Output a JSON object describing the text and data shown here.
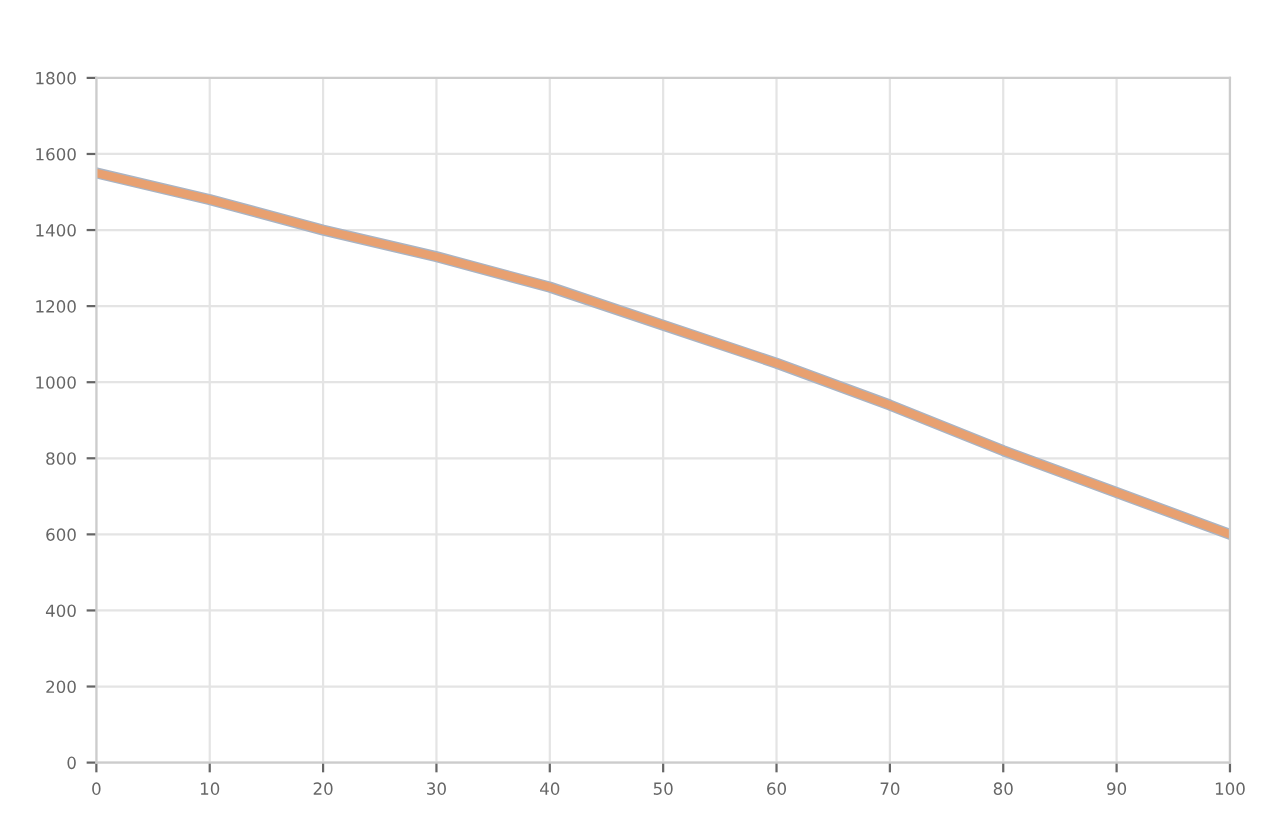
{
  "chart_data": {
    "type": "line",
    "x": [
      0,
      10,
      20,
      30,
      40,
      50,
      60,
      70,
      80,
      90,
      100
    ],
    "series": [
      {
        "color": "#a9b4c4",
        "values": [
          1550,
          1480,
          1400,
          1330,
          1250,
          1150,
          1050,
          940,
          820,
          710,
          600
        ]
      },
      {
        "color": "#e8a070",
        "values": [
          1550,
          1480,
          1400,
          1330,
          1250,
          1150,
          1050,
          940,
          820,
          710,
          600
        ]
      }
    ],
    "xlim": [
      0,
      100
    ],
    "xticks": [
      0,
      10,
      20,
      30,
      40,
      50,
      60,
      70,
      80,
      90,
      100
    ],
    "ylim": [
      0,
      1800
    ],
    "yticks": [
      0,
      200,
      400,
      600,
      800,
      1000,
      1200,
      1400,
      1600,
      1800
    ],
    "grid": true,
    "marker": "none",
    "line_style": "solid"
  }
}
